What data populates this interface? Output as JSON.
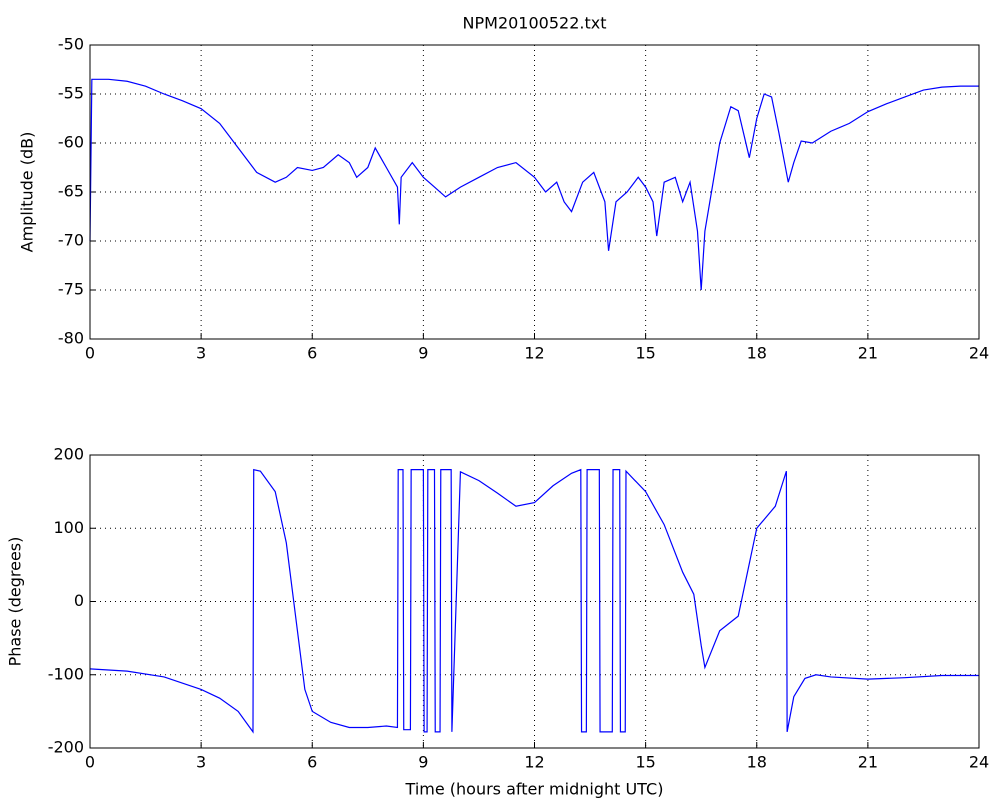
{
  "chart_data": [
    {
      "type": "line",
      "title": "NPM20100522.txt",
      "y_label": "Amplitude (dB)",
      "x": [
        0,
        0.05,
        0.5,
        1,
        1.5,
        2,
        2.5,
        3,
        3.5,
        4,
        4.5,
        5,
        5.3,
        5.6,
        6,
        6.3,
        6.7,
        7,
        7.2,
        7.5,
        7.7,
        8,
        8.3,
        8.35,
        8.4,
        8.7,
        9,
        9.3,
        9.6,
        10,
        10.5,
        11,
        11.5,
        12,
        12.3,
        12.6,
        12.8,
        13,
        13.3,
        13.6,
        13.9,
        14,
        14.2,
        14.5,
        14.8,
        15,
        15.2,
        15.3,
        15.5,
        15.8,
        16,
        16.2,
        16.4,
        16.5,
        16.6,
        17,
        17.3,
        17.5,
        17.8,
        18,
        18.2,
        18.4,
        18.6,
        18.85,
        19,
        19.2,
        19.5,
        20,
        20.5,
        21,
        21.5,
        22,
        22.5,
        23,
        23.5,
        24
      ],
      "series": [
        {
          "color": "#0000ff",
          "values": [
            -70,
            -53.5,
            -53.5,
            -53.7,
            -54.2,
            -55,
            -55.7,
            -56.5,
            -58,
            -60.5,
            -63,
            -64,
            -63.5,
            -62.5,
            -62.8,
            -62.5,
            -61.2,
            -62,
            -63.5,
            -62.5,
            -60.5,
            -62.5,
            -64.5,
            -68.3,
            -63.5,
            -62,
            -63.5,
            -64.5,
            -65.5,
            -64.5,
            -63.5,
            -62.5,
            -62,
            -63.5,
            -65,
            -64,
            -66,
            -67,
            -64,
            -63,
            -66,
            -71,
            -66,
            -65,
            -63.5,
            -64.5,
            -66,
            -69.5,
            -64,
            -63.5,
            -66,
            -64,
            -69,
            -75,
            -69,
            -60,
            -56.3,
            -56.7,
            -61.5,
            -57.5,
            -55,
            -55.3,
            -59,
            -64,
            -62,
            -59.8,
            -60,
            -58.8,
            -58,
            -56.8,
            -56,
            -55.3,
            -54.6,
            -54.3,
            -54.2,
            -54.2
          ]
        }
      ],
      "xlim": [
        0,
        24
      ],
      "xticks": [
        0,
        3,
        6,
        9,
        12,
        15,
        18,
        21,
        24
      ],
      "ylim": [
        -80,
        -50
      ],
      "yticks": [
        -80,
        -75,
        -70,
        -65,
        -60,
        -55,
        -50
      ],
      "grid": true
    },
    {
      "type": "line",
      "x_label": "Time (hours after midnight UTC)",
      "y_label": "Phase (degrees)",
      "x": [
        0,
        1,
        2,
        3,
        3.5,
        4,
        4.4,
        4.42,
        4.6,
        5,
        5.3,
        5.6,
        5.8,
        6,
        6.5,
        7,
        7.5,
        8,
        8.3,
        8.32,
        8.45,
        8.47,
        8.65,
        8.67,
        9,
        9.02,
        9.1,
        9.12,
        9.3,
        9.32,
        9.45,
        9.47,
        9.75,
        9.77,
        10,
        10.5,
        11,
        11.5,
        12,
        12.5,
        13,
        13.25,
        13.27,
        13.4,
        13.42,
        13.75,
        13.77,
        14.1,
        14.12,
        14.3,
        14.32,
        14.45,
        14.47,
        15,
        15.5,
        16,
        16.3,
        16.5,
        16.6,
        17,
        17.5,
        18,
        18.5,
        18.8,
        18.82,
        19,
        19.3,
        19.6,
        20,
        21,
        22,
        23,
        24
      ],
      "series": [
        {
          "color": "#0000ff",
          "values": [
            -92,
            -95,
            -103,
            -120,
            -132,
            -150,
            -178,
            180,
            178,
            150,
            80,
            -40,
            -120,
            -150,
            -165,
            -172,
            -172,
            -170,
            -172,
            180,
            180,
            -175,
            -175,
            180,
            180,
            -178,
            -178,
            180,
            180,
            -178,
            -178,
            180,
            180,
            -178,
            177,
            165,
            148,
            130,
            135,
            158,
            175,
            180,
            -178,
            -178,
            180,
            180,
            -178,
            -178,
            180,
            180,
            -178,
            -178,
            178,
            150,
            105,
            40,
            10,
            -60,
            -90,
            -40,
            -20,
            100,
            130,
            178,
            -178,
            -130,
            -105,
            -100,
            -103,
            -106,
            -104,
            -101,
            -101
          ]
        }
      ],
      "xlim": [
        0,
        24
      ],
      "xticks": [
        0,
        3,
        6,
        9,
        12,
        15,
        18,
        21,
        24
      ],
      "ylim": [
        -200,
        200
      ],
      "yticks": [
        -200,
        -100,
        0,
        100,
        200
      ],
      "grid": true
    }
  ]
}
